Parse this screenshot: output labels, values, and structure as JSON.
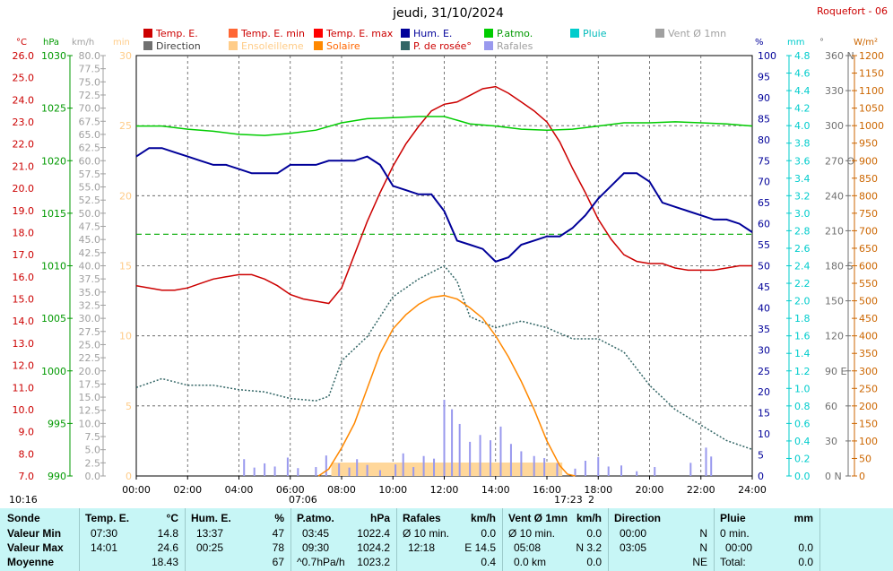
{
  "title": "jeudi, 31/10/2024",
  "station": "Roquefort - 06",
  "legend": [
    {
      "label": "Temp. E.",
      "color": "#cc0000",
      "text_color": "#cc0000"
    },
    {
      "label": "Temp. E. min",
      "color": "#ff6633",
      "text_color": "#cc0000"
    },
    {
      "label": "Temp. E. max",
      "color": "#ff0000",
      "text_color": "#cc0000"
    },
    {
      "label": "Hum. E.",
      "color": "#000099",
      "text_color": "#000099"
    },
    {
      "label": "P.atmo.",
      "color": "#00cc00",
      "text_color": "#009900"
    },
    {
      "label": "Pluie",
      "color": "#00cccc",
      "text_color": "#00bbbb"
    },
    {
      "label": "Vent Ø 1mn",
      "color": "#a0a0a0",
      "text_color": "#a0a0a0"
    },
    {
      "label": "Direction",
      "color": "#707070",
      "text_color": "#404040"
    },
    {
      "label": "Ensoleilleme",
      "color": "#ffcc88",
      "text_color": "#ffcc88"
    },
    {
      "label": "Solaire",
      "color": "#ff8800",
      "text_color": "#ff6600"
    },
    {
      "label": "P. de rosée°",
      "color": "#336666",
      "text_color": "#cc0000"
    },
    {
      "label": "Rafales",
      "color": "#9999ee",
      "text_color": "#a0a0a0"
    }
  ],
  "chart_data": {
    "type": "line",
    "x_ticks": [
      "00:00",
      "02:00",
      "04:00",
      "06:00",
      "08:00",
      "10:00",
      "12:00",
      "14:00",
      "16:00",
      "18:00",
      "20:00",
      "22:00",
      "24:00"
    ],
    "axes": [
      {
        "unit": "°C",
        "ticks": [
          "7.0",
          "8.0",
          "9.0",
          "10.0",
          "11.0",
          "12.0",
          "13.0",
          "14.0",
          "15.0",
          "16.0",
          "17.0",
          "18.0",
          "19.0",
          "20.0",
          "21.0",
          "22.0",
          "23.0",
          "24.0",
          "25.0",
          "26.0"
        ],
        "color": "#cc0000"
      },
      {
        "unit": "hPa",
        "ticks": [
          "990",
          "995",
          "1000",
          "1005",
          "1010",
          "1015",
          "1020",
          "1025",
          "1030"
        ],
        "color": "#009900"
      },
      {
        "unit": "km/h",
        "ticks": [
          "0.0",
          "2.5",
          "5.0",
          "7.5",
          "10.0",
          "12.5",
          "15.0",
          "17.5",
          "20.0",
          "22.5",
          "25.0",
          "27.5",
          "30.0",
          "32.5",
          "35.0",
          "37.5",
          "40.0",
          "42.5",
          "45.0",
          "47.5",
          "50.0",
          "52.5",
          "55.0",
          "57.5",
          "60.0",
          "62.5",
          "65.0",
          "67.5",
          "70.0",
          "72.5",
          "75.0",
          "77.5",
          "80.0"
        ],
        "color": "#a0a0a0"
      },
      {
        "unit": "min",
        "ticks": [
          "0",
          "5",
          "10",
          "15",
          "20",
          "25",
          "30"
        ],
        "color": "#ffcc88"
      },
      {
        "unit": "%",
        "ticks": [
          "0",
          "5",
          "10",
          "15",
          "20",
          "25",
          "30",
          "35",
          "40",
          "45",
          "50",
          "55",
          "60",
          "65",
          "70",
          "75",
          "80",
          "85",
          "90",
          "95",
          "100"
        ],
        "color": "#000099"
      },
      {
        "unit": "mm",
        "ticks": [
          "0.0",
          "0.2",
          "0.4",
          "0.6",
          "0.8",
          "1.0",
          "1.2",
          "1.4",
          "1.6",
          "1.8",
          "2.0",
          "2.2",
          "2.4",
          "2.6",
          "2.8",
          "3.0",
          "3.2",
          "3.4",
          "3.6",
          "3.8",
          "4.0",
          "4.2",
          "4.4",
          "4.6",
          "4.8"
        ],
        "color": "#00cccc"
      },
      {
        "unit": "°",
        "ticks": [
          "0 N",
          "30",
          "60",
          "90 E",
          "120",
          "150",
          "180 S",
          "210",
          "240",
          "270 O",
          "300",
          "330",
          "360 N"
        ],
        "color": "#707070"
      },
      {
        "unit": "W/m²",
        "ticks": [
          "0",
          "50",
          "100",
          "150",
          "200",
          "250",
          "300",
          "350",
          "400",
          "450",
          "500",
          "550",
          "600",
          "650",
          "700",
          "750",
          "800",
          "850",
          "900",
          "950",
          "1000",
          "1050",
          "1100",
          "1150",
          "1200"
        ],
        "color": "#cc6600"
      }
    ],
    "series": [
      {
        "name": "Temp. E.",
        "unit": "°C",
        "color": "#cc0000",
        "x": [
          0,
          0.5,
          1,
          1.5,
          2,
          2.5,
          3,
          3.5,
          4,
          4.5,
          5,
          5.5,
          6,
          6.5,
          7,
          7.5,
          8,
          8.5,
          9,
          9.5,
          10,
          10.5,
          11,
          11.5,
          12,
          12.5,
          13,
          13.5,
          14,
          14.5,
          15,
          15.5,
          16,
          16.5,
          17,
          17.5,
          18,
          18.5,
          19,
          19.5,
          20,
          20.5,
          21,
          21.5,
          22,
          22.5,
          23,
          23.5,
          24
        ],
        "y": [
          15.6,
          15.5,
          15.4,
          15.4,
          15.5,
          15.7,
          15.9,
          16.0,
          16.1,
          16.1,
          15.9,
          15.6,
          15.2,
          15.0,
          14.9,
          14.8,
          15.5,
          17.0,
          18.5,
          19.8,
          21.0,
          22.0,
          22.8,
          23.5,
          23.8,
          23.9,
          24.2,
          24.5,
          24.6,
          24.3,
          23.9,
          23.5,
          23.0,
          22.1,
          20.9,
          19.8,
          18.6,
          17.7,
          17.0,
          16.7,
          16.6,
          16.6,
          16.4,
          16.3,
          16.3,
          16.3,
          16.4,
          16.5,
          16.5
        ]
      },
      {
        "name": "Hum. E.",
        "unit": "%",
        "color": "#000099",
        "x": [
          0,
          0.5,
          1,
          1.5,
          2,
          2.5,
          3,
          3.5,
          4,
          4.5,
          5,
          5.5,
          6,
          6.5,
          7,
          7.5,
          8,
          8.5,
          9,
          9.5,
          10,
          10.5,
          11,
          11.5,
          12,
          12.5,
          13,
          13.5,
          14,
          14.5,
          15,
          15.5,
          16,
          16.5,
          17,
          17.5,
          18,
          18.5,
          19,
          19.5,
          20,
          20.5,
          21,
          21.5,
          22,
          22.5,
          23,
          23.5,
          24
        ],
        "y": [
          76,
          78,
          78,
          77,
          76,
          75,
          74,
          74,
          73,
          72,
          72,
          72,
          74,
          74,
          74,
          75,
          75,
          75,
          76,
          74,
          69,
          68,
          67,
          67,
          63,
          56,
          55,
          54,
          51,
          52,
          55,
          56,
          57,
          57,
          59,
          62,
          66,
          69,
          72,
          72,
          70,
          65,
          64,
          63,
          62,
          61,
          61,
          60,
          58
        ]
      },
      {
        "name": "P.atmo.",
        "unit": "hPa",
        "color": "#00cc00",
        "x": [
          0,
          1,
          2,
          3,
          4,
          5,
          6,
          7,
          8,
          9,
          10,
          11,
          12,
          13,
          14,
          15,
          16,
          17,
          18,
          19,
          20,
          21,
          22,
          23,
          24
        ],
        "y": [
          1023.3,
          1023.3,
          1023.0,
          1022.8,
          1022.5,
          1022.4,
          1022.6,
          1022.9,
          1023.6,
          1024.0,
          1024.1,
          1024.2,
          1024.2,
          1023.5,
          1023.3,
          1023.0,
          1022.9,
          1023.0,
          1023.3,
          1023.6,
          1023.6,
          1023.7,
          1023.6,
          1023.5,
          1023.3
        ]
      },
      {
        "name": "P. de rosée°",
        "unit": "°C",
        "color": "#336666",
        "x": [
          0,
          1,
          2,
          3,
          4,
          5,
          6,
          7,
          7.5,
          8,
          9,
          10,
          11,
          12,
          12.5,
          13,
          14,
          15,
          16,
          17,
          18,
          19,
          20,
          21,
          22,
          23,
          24
        ],
        "y": [
          11.0,
          11.4,
          11.1,
          11.1,
          10.9,
          10.8,
          10.5,
          10.4,
          10.6,
          12.2,
          13.3,
          15.1,
          15.9,
          16.5,
          15.8,
          14.2,
          13.7,
          14.0,
          13.7,
          13.2,
          13.2,
          12.6,
          11.1,
          10.0,
          9.3,
          8.6,
          8.2
        ]
      },
      {
        "name": "Solaire",
        "unit": "W/m²",
        "color": "#ff8800",
        "x": [
          7.1,
          7.5,
          8,
          8.5,
          9,
          9.5,
          10,
          10.5,
          11,
          11.5,
          12,
          12.5,
          13,
          13.5,
          14,
          14.5,
          15,
          15.5,
          16,
          16.5,
          16.8,
          17.1
        ],
        "y": [
          0,
          20,
          80,
          150,
          250,
          350,
          420,
          460,
          490,
          510,
          515,
          505,
          480,
          450,
          400,
          340,
          270,
          190,
          100,
          30,
          5,
          0
        ]
      },
      {
        "name": "Rafales",
        "unit": "km/h",
        "color": "#9999ee",
        "x": [
          4.2,
          4.6,
          5.0,
          5.4,
          5.9,
          6.3,
          7.0,
          7.4,
          7.9,
          8.3,
          8.6,
          9.0,
          9.5,
          10.1,
          10.4,
          10.8,
          11.2,
          11.6,
          12.0,
          12.3,
          12.6,
          13.0,
          13.4,
          13.8,
          14.2,
          14.6,
          15.0,
          15.5,
          15.9,
          16.4,
          17.1,
          17.5,
          18.0,
          18.4,
          18.9,
          19.5,
          20.2,
          21.6,
          22.2,
          22.4
        ],
        "y": [
          3.2,
          1.6,
          2.4,
          1.8,
          3.5,
          1.5,
          1.7,
          3.9,
          2.4,
          1.6,
          3.2,
          2.1,
          1.1,
          2.2,
          4.3,
          1.7,
          3.8,
          3.3,
          14.5,
          12.7,
          9.9,
          6.5,
          7.8,
          6.8,
          9.4,
          6.1,
          4.7,
          3.8,
          3.4,
          2.4,
          1.4,
          2.9,
          3.6,
          1.8,
          2.0,
          0.9,
          1.7,
          2.5,
          5.4,
          3.7
        ]
      }
    ]
  },
  "summary": {
    "sonde": {
      "header": "Sonde",
      "rows": [
        "Valeur Min",
        "Valeur Max",
        "Moyenne"
      ]
    },
    "temp": {
      "header": "Temp. E.",
      "unit": "°C",
      "time_min": "07:30",
      "val_min": "14.8",
      "time_max": "14:01",
      "val_max": "24.6",
      "avg": "18.43"
    },
    "hum": {
      "header": "Hum. E.",
      "unit": "%",
      "time_min": "13:37",
      "val_min": "47",
      "time_max": "00:25",
      "val_max": "78",
      "avg": "67"
    },
    "press": {
      "header": "P.atmo.",
      "unit": "hPa",
      "time_min": "03:45",
      "val_min": "1022.4",
      "time_max": "09:30",
      "val_max": "1024.2",
      "trend": "^0.7hPa/h",
      "avg": "1023.2"
    },
    "gust": {
      "header": "Rafales",
      "unit": "km/h",
      "label_min": "Ø 10 min.",
      "val_min": "0.0",
      "time_max": "12:18",
      "val_max": "E 14.5",
      "avg": "0.4"
    },
    "wind": {
      "header": "Vent Ø 1mn",
      "unit": "km/h",
      "label_min": "Ø 10 min.",
      "val_min": "0.0",
      "time_max": "05:08",
      "val_max": "N 3.2",
      "label_avg": "0.0 km",
      "avg": "0.0"
    },
    "dir": {
      "header": "Direction",
      "time_min": "00:00",
      "val_min": "N",
      "time_max": "03:05",
      "val_max": "N",
      "avg": "NE"
    },
    "rain": {
      "header": "Pluie",
      "unit": "mm",
      "label_min": "0 min.",
      "time_max": "00:00",
      "val_max": "0.0",
      "label_avg": "Total:",
      "avg": "0.0"
    }
  },
  "footer_marks": {
    "start": "10:16",
    "sunrise": "07:06",
    "sunset": "17:23",
    "sunset_suffix": "2"
  }
}
